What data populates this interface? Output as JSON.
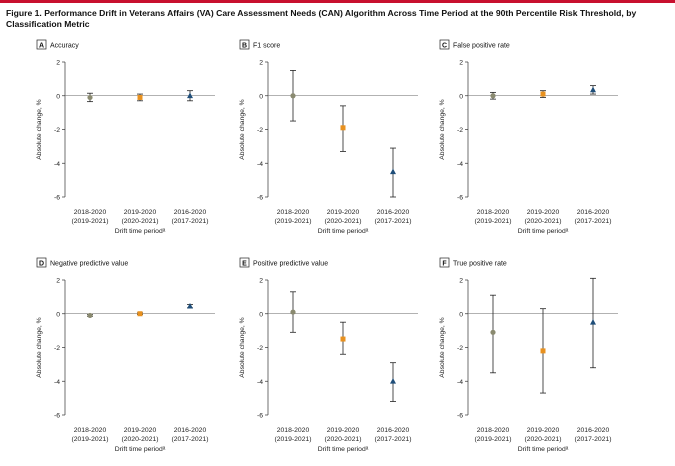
{
  "figure": {
    "title": "Figure 1. Performance Drift in Veterans Affairs (VA) Care Assessment Needs (CAN) Algorithm Across Time Period at the 90th Percentile Risk Threshold, by Classification Metric"
  },
  "colors": {
    "accent_rule": "#c8102e",
    "marker_2018_2020": "#8a8a70",
    "marker_2019_2020": "#e8911f",
    "marker_2016_2020": "#1f4e79",
    "axis": "#333333",
    "zero_line": "#666666"
  },
  "chart_data": [
    {
      "type": "scatter",
      "panel_letter": "A",
      "title": "Accuracy",
      "xlabel": "Drift time periodᵃ",
      "ylabel": "Absolute change, %",
      "ylim": [
        -6,
        2
      ],
      "yticks": [
        "2",
        "0",
        "-2",
        "-4",
        "-6"
      ],
      "categories": [
        "2018-2020",
        "2019-2020",
        "2016-2020"
      ],
      "category_sublabels": [
        "(2019-2021)",
        "(2020-2021)",
        "(2017-2021)"
      ],
      "markers": [
        "circle",
        "square",
        "triangle"
      ],
      "values": [
        -0.1,
        -0.1,
        0.0
      ],
      "ci_low": [
        -0.35,
        -0.3,
        -0.3
      ],
      "ci_high": [
        0.15,
        0.1,
        0.3
      ]
    },
    {
      "type": "scatter",
      "panel_letter": "B",
      "title": "F1 score",
      "xlabel": "Drift time periodᵃ",
      "ylabel": "Absolute change, %",
      "ylim": [
        -6,
        2
      ],
      "yticks": [
        "2",
        "0",
        "-2",
        "-4",
        "-6"
      ],
      "categories": [
        "2018-2020",
        "2019-2020",
        "2016-2020"
      ],
      "category_sublabels": [
        "(2019-2021)",
        "(2020-2021)",
        "(2017-2021)"
      ],
      "markers": [
        "circle",
        "square",
        "triangle"
      ],
      "values": [
        0.0,
        -1.9,
        -4.5
      ],
      "ci_low": [
        -1.5,
        -3.3,
        -6.0
      ],
      "ci_high": [
        1.5,
        -0.6,
        -3.1
      ]
    },
    {
      "type": "scatter",
      "panel_letter": "C",
      "title": "False positive rate",
      "xlabel": "Drift time periodᵃ",
      "ylabel": "Absolute change, %",
      "ylim": [
        -6,
        2
      ],
      "yticks": [
        "2",
        "0",
        "-2",
        "-4",
        "-6"
      ],
      "categories": [
        "2018-2020",
        "2019-2020",
        "2016-2020"
      ],
      "category_sublabels": [
        "(2019-2021)",
        "(2020-2021)",
        "(2017-2021)"
      ],
      "markers": [
        "circle",
        "square",
        "triangle"
      ],
      "values": [
        0.0,
        0.1,
        0.35
      ],
      "ci_low": [
        -0.2,
        -0.1,
        0.1
      ],
      "ci_high": [
        0.2,
        0.3,
        0.6
      ]
    },
    {
      "type": "scatter",
      "panel_letter": "D",
      "title": "Negative predictive value",
      "xlabel": "Drift time periodᵃ",
      "ylabel": "Absolute change, %",
      "ylim": [
        -6,
        2
      ],
      "yticks": [
        "2",
        "0",
        "-2",
        "-4",
        "-6"
      ],
      "categories": [
        "2018-2020",
        "2019-2020",
        "2016-2020"
      ],
      "category_sublabels": [
        "(2019-2021)",
        "(2020-2021)",
        "(2017-2021)"
      ],
      "markers": [
        "circle",
        "square",
        "triangle"
      ],
      "values": [
        -0.1,
        0.0,
        0.45
      ],
      "ci_low": [
        -0.15,
        -0.05,
        0.35
      ],
      "ci_high": [
        -0.05,
        0.05,
        0.55
      ]
    },
    {
      "type": "scatter",
      "panel_letter": "E",
      "title": "Positive predictive value",
      "xlabel": "Drift time periodᵃ",
      "ylabel": "Absolute change, %",
      "ylim": [
        -6,
        2
      ],
      "yticks": [
        "2",
        "0",
        "-2",
        "-4",
        "-6"
      ],
      "categories": [
        "2018-2020",
        "2019-2020",
        "2016-2020"
      ],
      "category_sublabels": [
        "(2019-2021)",
        "(2020-2021)",
        "(2017-2021)"
      ],
      "markers": [
        "circle",
        "square",
        "triangle"
      ],
      "values": [
        0.1,
        -1.5,
        -4.0
      ],
      "ci_low": [
        -1.1,
        -2.4,
        -5.2
      ],
      "ci_high": [
        1.3,
        -0.5,
        -2.9
      ]
    },
    {
      "type": "scatter",
      "panel_letter": "F",
      "title": "True positive rate",
      "xlabel": "Drift time periodᵃ",
      "ylabel": "Absolute change, %",
      "ylim": [
        -6,
        2
      ],
      "yticks": [
        "2",
        "0",
        "-2",
        "-4",
        "-6"
      ],
      "categories": [
        "2018-2020",
        "2019-2020",
        "2016-2020"
      ],
      "category_sublabels": [
        "(2019-2021)",
        "(2020-2021)",
        "(2017-2021)"
      ],
      "markers": [
        "circle",
        "square",
        "triangle"
      ],
      "values": [
        -1.1,
        -2.2,
        -0.5
      ],
      "ci_low": [
        -3.5,
        -4.7,
        -3.2
      ],
      "ci_high": [
        1.1,
        0.3,
        2.1
      ]
    }
  ]
}
